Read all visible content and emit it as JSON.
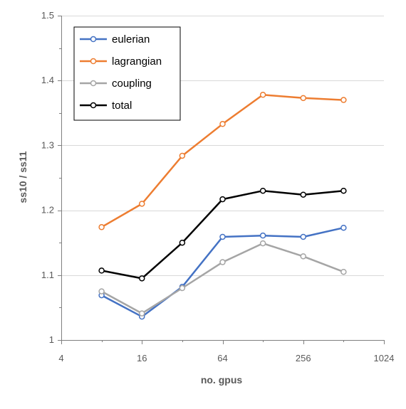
{
  "chart_data": {
    "type": "line",
    "title": "",
    "xlabel": "no. gpus",
    "ylabel": "ss10 / ss11",
    "x_scale": "log2",
    "xlim": [
      4,
      1024
    ],
    "ylim": [
      1,
      1.5
    ],
    "x_ticks": [
      4,
      16,
      64,
      256,
      1024
    ],
    "x_tick_labels": [
      "4",
      "16",
      "64",
      "256",
      "1024"
    ],
    "y_ticks": [
      1,
      1.1,
      1.2,
      1.3,
      1.4,
      1.5
    ],
    "y_tick_labels": [
      "1",
      "1.1",
      "1.2",
      "1.3",
      "1.4",
      "1.5"
    ],
    "grid": "horizontal",
    "legend_position": "top-left",
    "x": [
      8,
      16,
      32,
      64,
      128,
      256,
      512
    ],
    "series": [
      {
        "name": "eulerian",
        "color": "#4472C4",
        "values": [
          1.069,
          1.036,
          1.082,
          1.159,
          1.161,
          1.159,
          1.173
        ]
      },
      {
        "name": "lagrangian",
        "color": "#ED7D31",
        "values": [
          1.174,
          1.21,
          1.284,
          1.333,
          1.378,
          1.373,
          1.37
        ]
      },
      {
        "name": "coupling",
        "color": "#A5A5A5",
        "values": [
          1.075,
          1.041,
          1.08,
          1.12,
          1.149,
          1.129,
          1.105
        ]
      },
      {
        "name": "total",
        "color": "#000000",
        "values": [
          1.107,
          1.095,
          1.15,
          1.217,
          1.23,
          1.224,
          1.23
        ]
      }
    ]
  }
}
